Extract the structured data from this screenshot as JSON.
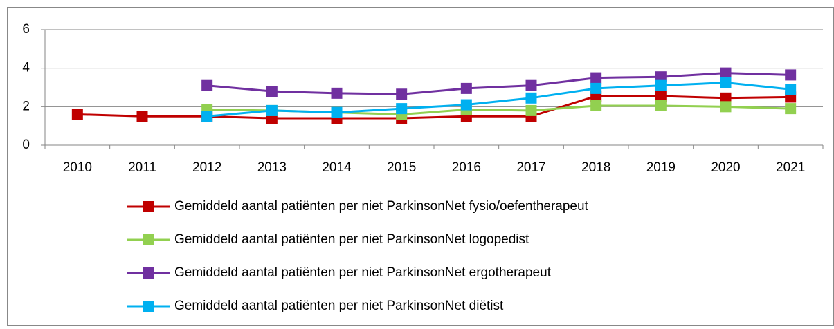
{
  "chart_data": {
    "type": "line",
    "categories": [
      "2010",
      "2011",
      "2012",
      "2013",
      "2014",
      "2015",
      "2016",
      "2017",
      "2018",
      "2019",
      "2020",
      "2021"
    ],
    "series": [
      {
        "name": "Gemiddeld aantal patiënten per niet ParkinsonNet fysio/oefentherapeut",
        "color": "#c00000",
        "values": [
          1.6,
          1.5,
          1.5,
          1.4,
          1.4,
          1.4,
          1.5,
          1.5,
          2.55,
          2.55,
          2.45,
          2.5
        ]
      },
      {
        "name": "Gemiddeld aantal patiënten per niet ParkinsonNet logopedist",
        "color": "#92d050",
        "values": [
          null,
          null,
          1.85,
          1.8,
          1.7,
          1.6,
          1.85,
          1.8,
          2.05,
          2.05,
          2.0,
          1.9
        ]
      },
      {
        "name": "Gemiddeld aantal patiënten per niet ParkinsonNet ergotherapeut",
        "color": "#7030a0",
        "values": [
          null,
          null,
          3.1,
          2.8,
          2.7,
          2.65,
          2.95,
          3.1,
          3.5,
          3.55,
          3.75,
          3.65
        ]
      },
      {
        "name": "Gemiddeld aantal patiënten per niet ParkinsonNet diëtist",
        "color": "#00b0f0",
        "values": [
          null,
          null,
          1.5,
          1.8,
          1.7,
          1.9,
          2.1,
          2.45,
          2.95,
          3.1,
          3.25,
          2.9
        ]
      }
    ],
    "ylim": [
      0,
      6
    ],
    "yticks": [
      0,
      2,
      4,
      6
    ],
    "grid": true,
    "legend": "bottom"
  }
}
